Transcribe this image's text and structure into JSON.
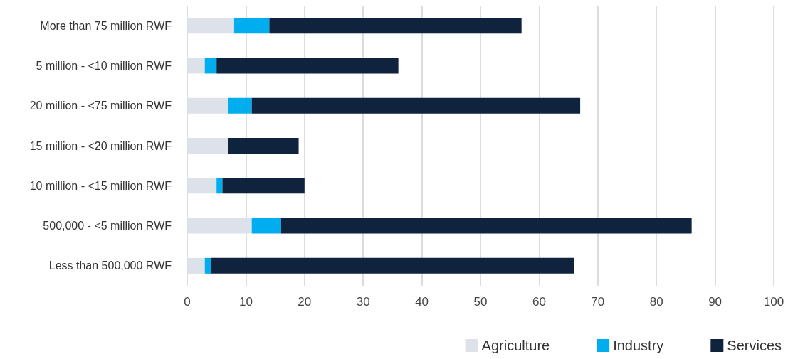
{
  "chart_data": {
    "type": "bar",
    "orientation": "horizontal",
    "stacked": true,
    "categories": [
      "More than 75 million RWF",
      "5 million - <10 million RWF",
      "20 million - <75 million RWF",
      "15 million - <20 million RWF",
      "10 million - <15 million RWF",
      "500,000 - <5 million RWF",
      "Less than 500,000 RWF"
    ],
    "series": [
      {
        "name": "Agriculture",
        "color": "#dde1ea",
        "values": [
          8,
          3,
          7,
          7,
          5,
          11,
          3
        ]
      },
      {
        "name": "Industry",
        "color": "#00aeef",
        "values": [
          6,
          2,
          4,
          0,
          1,
          5,
          1
        ]
      },
      {
        "name": "Services",
        "color": "#0f233f",
        "values": [
          43,
          31,
          56,
          12,
          14,
          70,
          62
        ]
      }
    ],
    "xlim": [
      0,
      100
    ],
    "xticks": [
      0,
      10,
      20,
      30,
      40,
      50,
      60,
      70,
      80,
      90,
      100
    ],
    "grid": "x",
    "legend": "bottom right"
  }
}
